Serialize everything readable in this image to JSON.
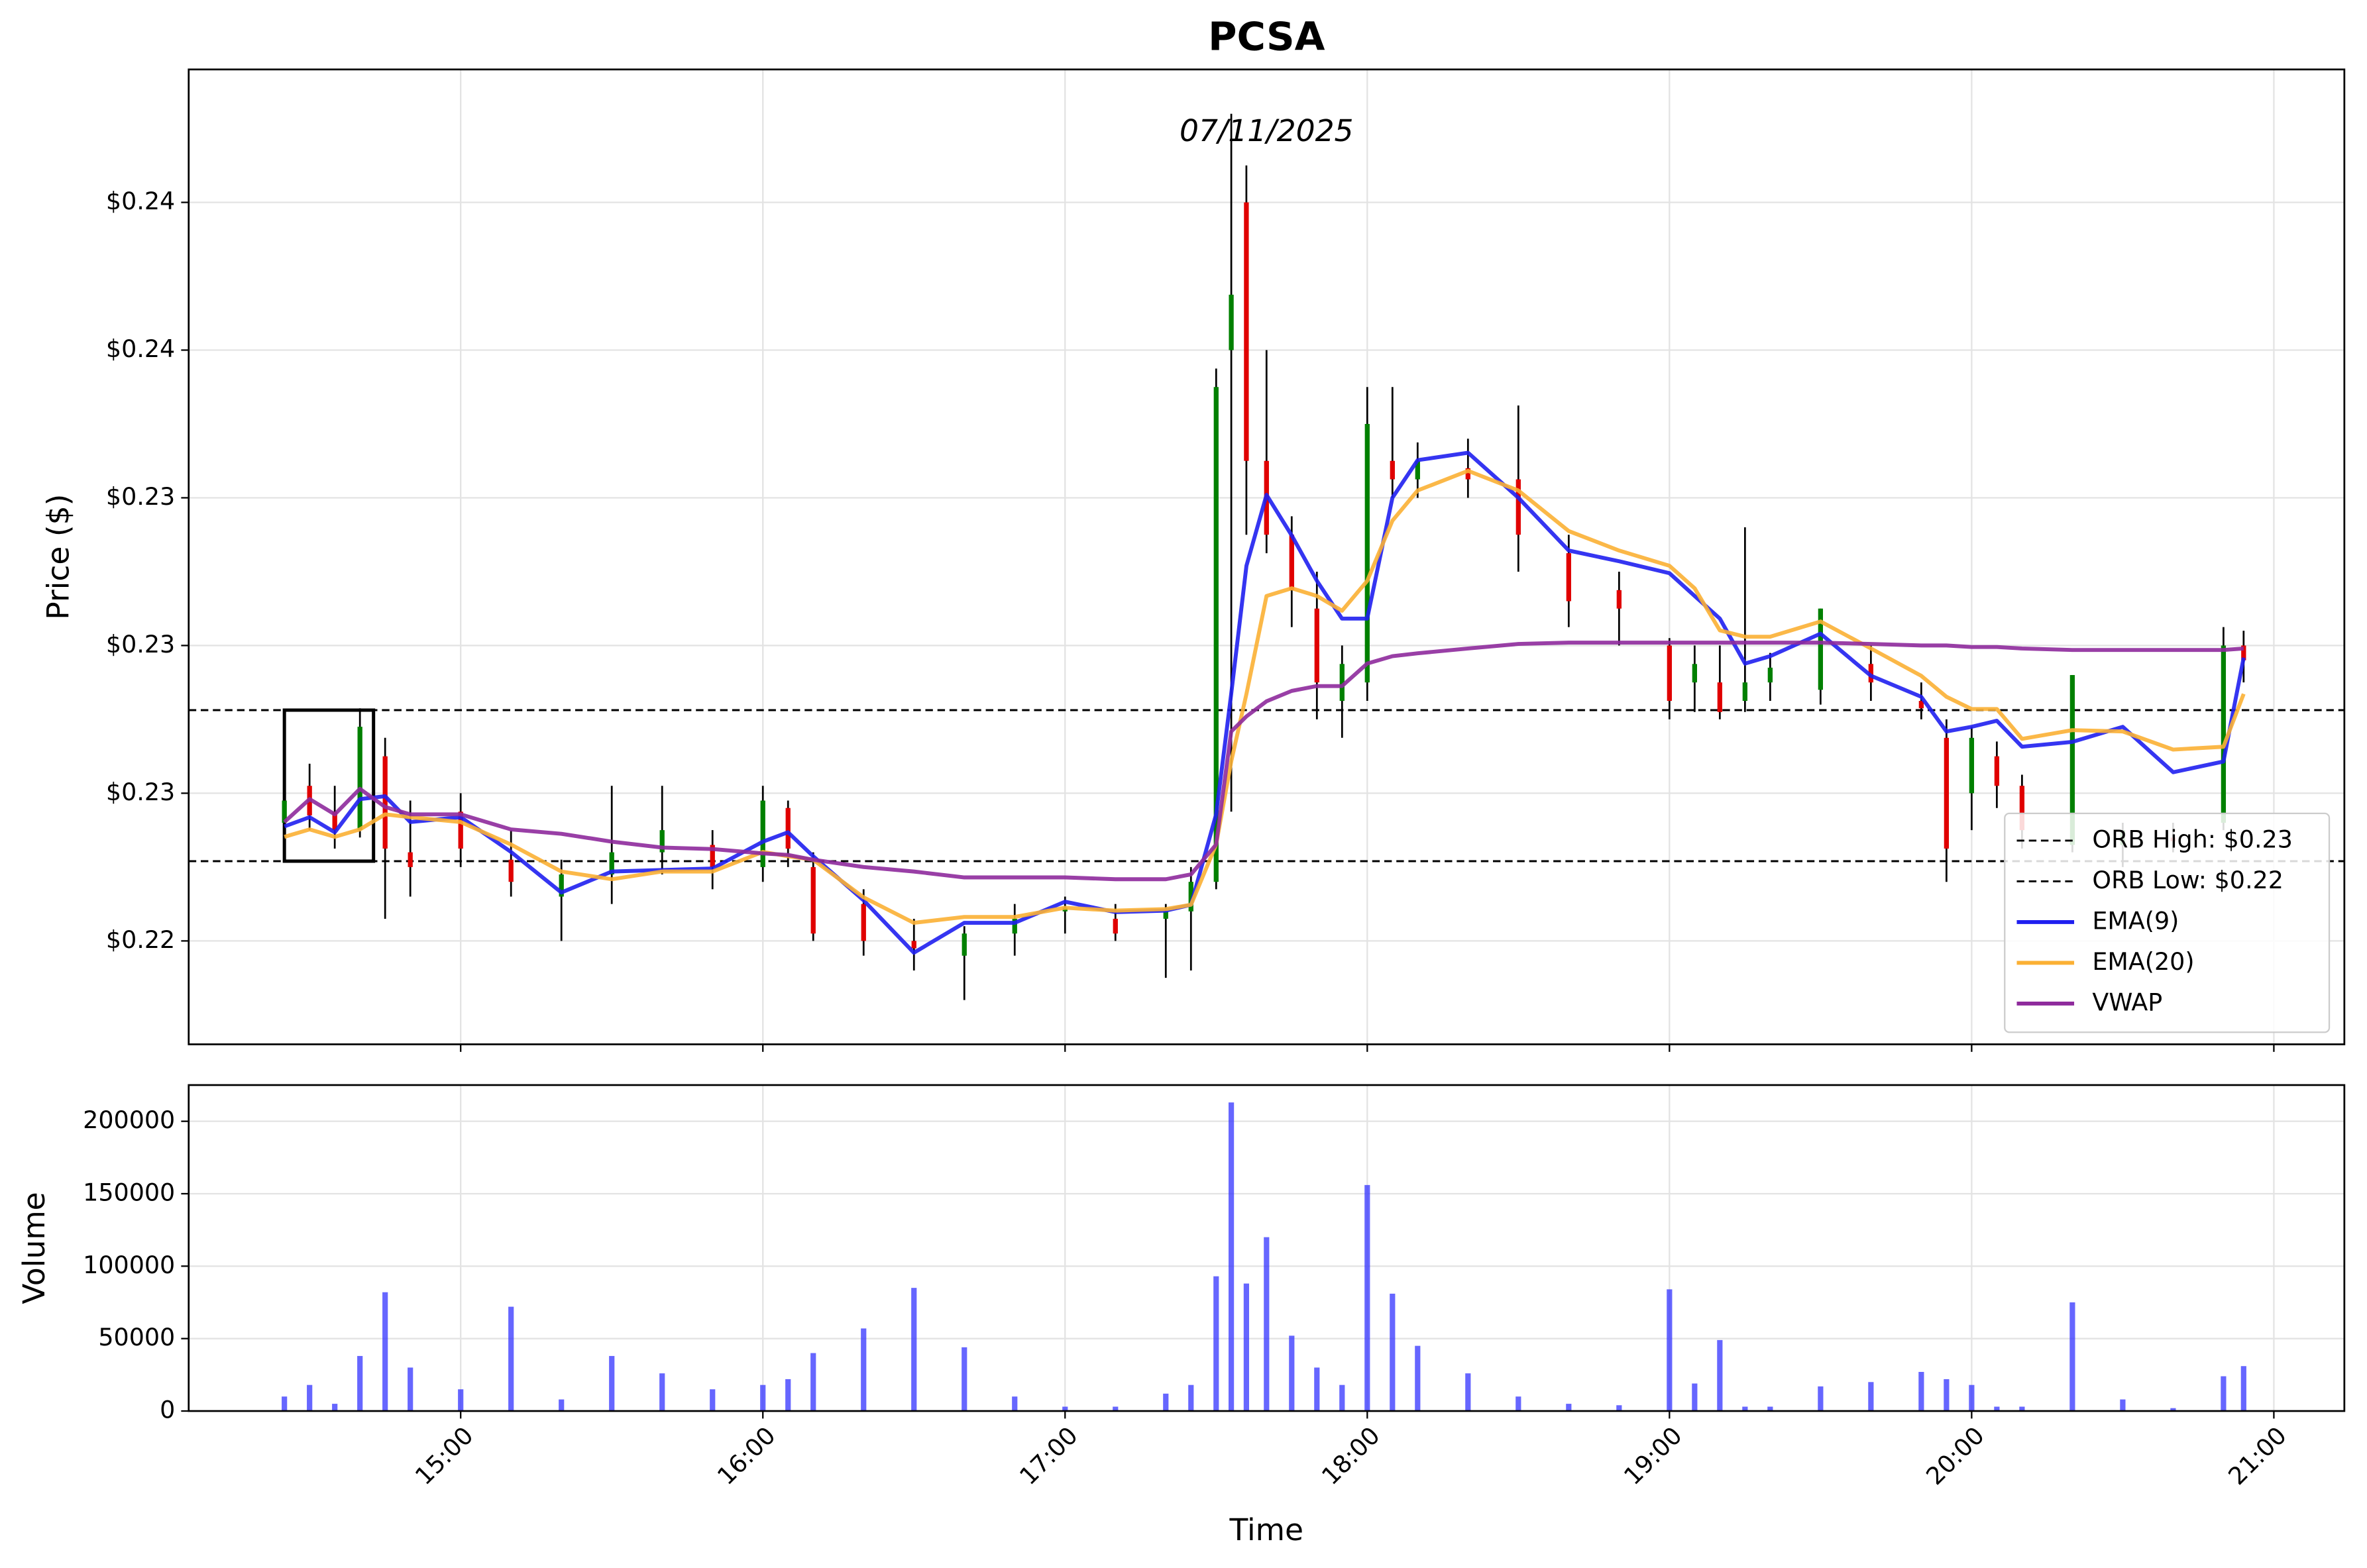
{
  "chart_data": [
    {
      "type": "candlestick",
      "title": "PCSA",
      "annotation": "07/11/2025",
      "y_label": "Price ($)",
      "x": [
        "14:25",
        "14:30",
        "14:35",
        "14:40",
        "14:45",
        "14:50",
        "15:00",
        "15:10",
        "15:20",
        "15:30",
        "15:40",
        "15:50",
        "16:00",
        "16:05",
        "16:10",
        "16:20",
        "16:30",
        "16:40",
        "16:50",
        "17:00",
        "17:10",
        "17:20",
        "17:25",
        "17:30",
        "17:33",
        "17:36",
        "17:40",
        "17:45",
        "17:50",
        "17:55",
        "18:00",
        "18:05",
        "18:10",
        "18:20",
        "18:30",
        "18:40",
        "18:50",
        "19:00",
        "19:05",
        "19:10",
        "19:15",
        "19:20",
        "19:30",
        "19:40",
        "19:50",
        "19:55",
        "20:00",
        "20:05",
        "20:10",
        "20:20",
        "20:30",
        "20:40",
        "20:50",
        "20:54"
      ],
      "open": [
        0.2252,
        0.2262,
        0.2255,
        0.225,
        0.227,
        0.2244,
        0.2255,
        0.2242,
        0.2232,
        0.2238,
        0.2244,
        0.2246,
        0.224,
        0.2256,
        0.224,
        0.223,
        0.222,
        0.2216,
        0.2222,
        0.2228,
        0.2226,
        0.2226,
        0.2228,
        0.2236,
        0.238,
        0.242,
        0.235,
        0.233,
        0.231,
        0.2285,
        0.229,
        0.235,
        0.2345,
        0.2348,
        0.2345,
        0.2325,
        0.2315,
        0.23,
        0.229,
        0.229,
        0.2285,
        0.229,
        0.2288,
        0.2295,
        0.2285,
        0.2275,
        0.226,
        0.227,
        0.2262,
        0.2246,
        0.2246,
        0.2248,
        0.2252,
        0.23
      ],
      "high": [
        0.2265,
        0.2268,
        0.2262,
        0.2283,
        0.2275,
        0.2258,
        0.226,
        0.225,
        0.2242,
        0.2262,
        0.2262,
        0.225,
        0.2262,
        0.2258,
        0.2244,
        0.2234,
        0.2226,
        0.2224,
        0.223,
        0.2232,
        0.223,
        0.223,
        0.224,
        0.2375,
        0.2444,
        0.243,
        0.238,
        0.2335,
        0.232,
        0.23,
        0.237,
        0.237,
        0.2355,
        0.2356,
        0.2365,
        0.233,
        0.232,
        0.2302,
        0.23,
        0.23,
        0.2332,
        0.2298,
        0.231,
        0.23,
        0.229,
        0.228,
        0.2278,
        0.2274,
        0.2265,
        0.2292,
        0.2252,
        0.2252,
        0.2305,
        0.2304
      ],
      "low": [
        0.2248,
        0.225,
        0.2245,
        0.2248,
        0.2226,
        0.2232,
        0.224,
        0.2232,
        0.222,
        0.223,
        0.2238,
        0.2234,
        0.2236,
        0.224,
        0.222,
        0.2216,
        0.2212,
        0.2204,
        0.2216,
        0.2222,
        0.222,
        0.221,
        0.2212,
        0.2234,
        0.2255,
        0.233,
        0.2325,
        0.2305,
        0.228,
        0.2275,
        0.2285,
        0.234,
        0.234,
        0.234,
        0.232,
        0.2305,
        0.23,
        0.228,
        0.2282,
        0.228,
        0.2282,
        0.2285,
        0.2284,
        0.2285,
        0.228,
        0.2236,
        0.225,
        0.2256,
        0.2245,
        0.2244,
        0.224,
        0.2244,
        0.225,
        0.229
      ],
      "close": [
        0.2258,
        0.2254,
        0.225,
        0.2278,
        0.2245,
        0.224,
        0.2245,
        0.2236,
        0.2238,
        0.2244,
        0.225,
        0.224,
        0.2258,
        0.2245,
        0.2222,
        0.222,
        0.2218,
        0.2222,
        0.2226,
        0.2229,
        0.2222,
        0.2228,
        0.2236,
        0.237,
        0.2395,
        0.235,
        0.233,
        0.2315,
        0.229,
        0.2295,
        0.236,
        0.2345,
        0.235,
        0.2345,
        0.233,
        0.2312,
        0.231,
        0.2285,
        0.2295,
        0.2282,
        0.229,
        0.2294,
        0.231,
        0.229,
        0.2283,
        0.2245,
        0.2275,
        0.2262,
        0.225,
        0.2292,
        0.225,
        0.2247,
        0.23,
        0.2296
      ],
      "up_color": "#008000",
      "down_color": "#e00000",
      "wick_color": "#000000",
      "series": [
        {
          "name": "EMA(9)",
          "color": "#1f1ff0",
          "values": [
            0.2251,
            0.22535,
            0.22494,
            0.22584,
            0.22592,
            0.22522,
            0.22535,
            0.22441,
            0.22331,
            0.22388,
            0.22392,
            0.22396,
            0.22469,
            0.22494,
            0.22429,
            0.2231,
            0.22168,
            0.22249,
            0.22249,
            0.22306,
            0.22278,
            0.22282,
            0.22298,
            0.22543,
            0.22869,
            0.23216,
            0.23408,
            0.23298,
            0.23175,
            0.23073,
            0.23073,
            0.234,
            0.23502,
            0.23522,
            0.234,
            0.23257,
            0.23228,
            0.23196,
            0.23134,
            0.23073,
            0.22951,
            0.22971,
            0.23032,
            0.22918,
            0.22861,
            0.22767,
            0.2278,
            0.22796,
            0.22726,
            0.22739,
            0.2278,
            0.22657,
            0.22686,
            0.22967
          ]
        },
        {
          "name": "EMA(20)",
          "color": "#fbb034",
          "values": [
            0.22482,
            0.22502,
            0.22482,
            0.22502,
            0.22543,
            0.22535,
            0.22522,
            0.22461,
            0.22388,
            0.22367,
            0.22388,
            0.22388,
            0.22441,
            0.22429,
            0.2242,
            0.22318,
            0.22249,
            0.22265,
            0.22265,
            0.2229,
            0.22282,
            0.22286,
            0.22298,
            0.22461,
            0.22686,
            0.22869,
            0.23134,
            0.23155,
            0.23134,
            0.23094,
            0.23175,
            0.23338,
            0.2342,
            0.23473,
            0.2342,
            0.2331,
            0.23257,
            0.23216,
            0.23155,
            0.23041,
            0.23024,
            0.23024,
            0.23065,
            0.22992,
            0.22918,
            0.22861,
            0.22828,
            0.22828,
            0.22747,
            0.22771,
            0.22767,
            0.22718,
            0.22726,
            0.22869
          ]
        },
        {
          "name": "VWAP",
          "color": "#8e2a9c",
          "values": [
            0.22522,
            0.22584,
            0.22543,
            0.22612,
            0.22563,
            0.22543,
            0.22543,
            0.22502,
            0.2249,
            0.22469,
            0.22453,
            0.22449,
            0.22437,
            0.22433,
            0.2242,
            0.224,
            0.22388,
            0.22372,
            0.22372,
            0.22372,
            0.22367,
            0.22367,
            0.2238,
            0.22461,
            0.22767,
            0.22808,
            0.22849,
            0.22877,
            0.2289,
            0.2289,
            0.22951,
            0.22971,
            0.22979,
            0.22992,
            0.23004,
            0.23008,
            0.23008,
            0.23008,
            0.23008,
            0.23008,
            0.23008,
            0.23008,
            0.23008,
            0.23004,
            0.23,
            0.23,
            0.22996,
            0.22996,
            0.22992,
            0.22988,
            0.22988,
            0.22988,
            0.22988,
            0.22992
          ]
        }
      ],
      "hlines": [
        {
          "name": "ORB High: $0.23",
          "value": 0.22825,
          "color": "#000000"
        },
        {
          "name": "ORB Low: $0.22",
          "value": 0.22416,
          "color": "#000000"
        }
      ],
      "xlim": [
        "14:06",
        "21:14"
      ],
      "xticks": [
        "15:00",
        "16:00",
        "17:00",
        "18:00",
        "19:00",
        "20:00",
        "21:00"
      ],
      "ylim": [
        0.2192,
        0.2456
      ],
      "yticks": [
        {
          "value": 0.222,
          "label": "$0.22"
        },
        {
          "value": 0.226,
          "label": "$0.23"
        },
        {
          "value": 0.23,
          "label": "$0.23"
        },
        {
          "value": 0.234,
          "label": "$0.23"
        },
        {
          "value": 0.238,
          "label": "$0.24"
        },
        {
          "value": 0.242,
          "label": "$0.24"
        }
      ],
      "grid": true,
      "legend": "lower right"
    },
    {
      "type": "bar",
      "x_label": "Time",
      "y_label": "Volume",
      "x": [
        "14:25",
        "14:30",
        "14:35",
        "14:40",
        "14:45",
        "14:50",
        "15:00",
        "15:10",
        "15:20",
        "15:30",
        "15:40",
        "15:50",
        "16:00",
        "16:05",
        "16:10",
        "16:20",
        "16:30",
        "16:40",
        "16:50",
        "17:00",
        "17:10",
        "17:20",
        "17:25",
        "17:30",
        "17:33",
        "17:36",
        "17:40",
        "17:45",
        "17:50",
        "17:55",
        "18:00",
        "18:05",
        "18:10",
        "18:20",
        "18:30",
        "18:40",
        "18:50",
        "19:00",
        "19:05",
        "19:10",
        "19:15",
        "19:20",
        "19:30",
        "19:40",
        "19:50",
        "19:55",
        "20:00",
        "20:05",
        "20:10",
        "20:20",
        "20:30",
        "20:40",
        "20:50",
        "20:54"
      ],
      "values": [
        10000,
        18000,
        5000,
        38000,
        82000,
        30000,
        15000,
        72000,
        8000,
        38000,
        26000,
        15000,
        18000,
        22000,
        40000,
        57000,
        85000,
        44000,
        10000,
        3000,
        3000,
        12000,
        18000,
        93000,
        213000,
        88000,
        120000,
        52000,
        30000,
        18000,
        156000,
        81000,
        45000,
        26000,
        10000,
        5000,
        4000,
        84000,
        19000,
        49000,
        3000,
        3000,
        17000,
        20000,
        27000,
        22000,
        18000,
        3000,
        3000,
        75000,
        8000,
        2000,
        24000,
        31000
      ],
      "color": "#3333ff",
      "xlim": [
        "14:06",
        "21:14"
      ],
      "xticks": [
        "15:00",
        "16:00",
        "17:00",
        "18:00",
        "19:00",
        "20:00",
        "21:00"
      ],
      "ylim": [
        0,
        225000
      ],
      "yticks": [
        0,
        50000,
        100000,
        150000,
        200000
      ],
      "grid": true
    }
  ]
}
